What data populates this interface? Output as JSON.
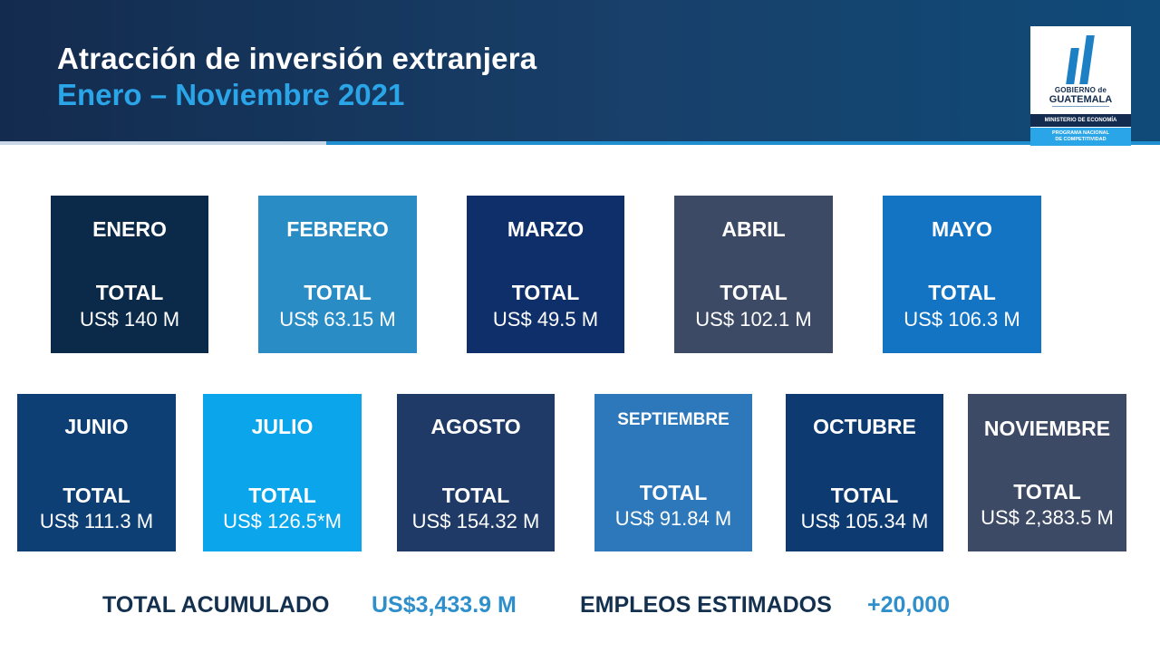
{
  "header": {
    "title": "Atracción de inversión extranjera",
    "subtitle": "Enero – Noviembre 2021"
  },
  "logo": {
    "line1": "GOBIERNO de",
    "line2": "GUATEMALA",
    "ministry": "MINISTERIO DE ECONOMÍA",
    "program_line1": "PROGRAMA NACIONAL",
    "program_line2": "DE COMPETITIVIDAD"
  },
  "total_label": "TOTAL",
  "months": [
    {
      "name": "ENERO",
      "value": "US$ 140 M",
      "color": "#0b2a4a"
    },
    {
      "name": "FEBRERO",
      "value": "US$ 63.15 M",
      "color": "#2a8cc4"
    },
    {
      "name": "MARZO",
      "value": "US$ 49.5 M",
      "color": "#0f2f6b"
    },
    {
      "name": "ABRIL",
      "value": "US$ 102.1 M",
      "color": "#3c4a66"
    },
    {
      "name": "MAYO",
      "value": "US$ 106.3 M",
      "color": "#1474c4"
    },
    {
      "name": "JUNIO",
      "value": "US$ 111.3 M",
      "color": "#0d3f74"
    },
    {
      "name": "JULIO",
      "value": "US$ 126.5*M",
      "color": "#0aa5ea"
    },
    {
      "name": "AGOSTO",
      "value": "US$ 154.32 M",
      "color": "#1f3a66"
    },
    {
      "name": "SEPTIEMBRE",
      "value": "US$ 91.84 M",
      "color": "#2c78bb"
    },
    {
      "name": "OCTUBRE",
      "value": "US$ 105.34 M",
      "color": "#0d3a70"
    },
    {
      "name": "NOVIEMBRE",
      "value": "US$ 2,383.5 M",
      "color": "#3c4a66"
    }
  ],
  "footer": {
    "accumulated_label": "TOTAL ACUMULADO",
    "accumulated_value": "US$3,433.9 M",
    "jobs_label": "EMPLEOS ESTIMADOS",
    "jobs_value": "+20,000"
  }
}
